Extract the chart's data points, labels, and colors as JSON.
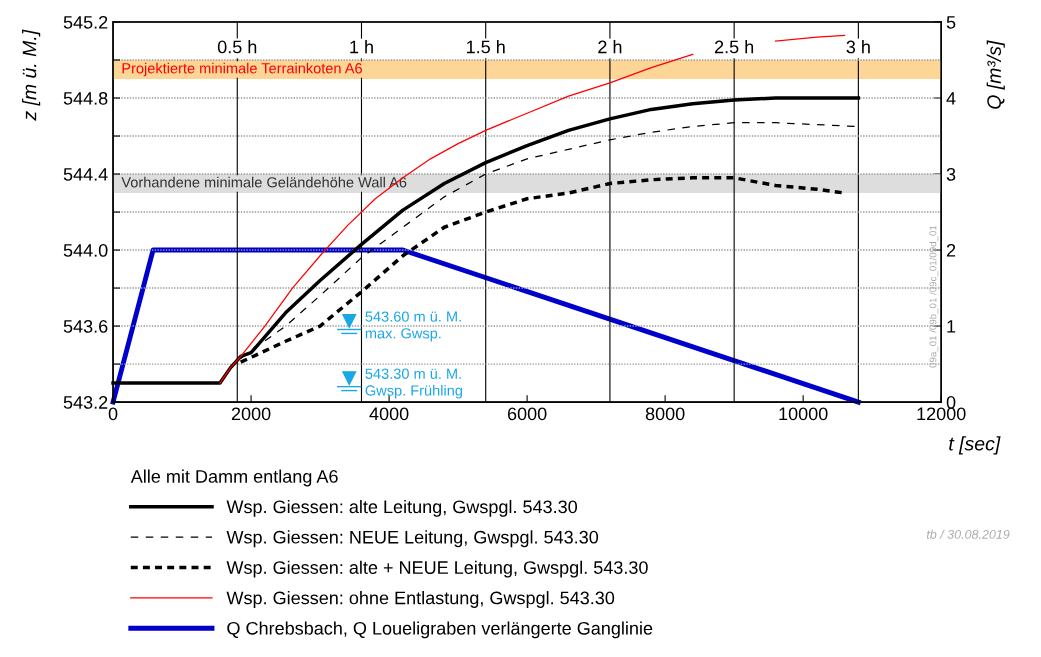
{
  "chart_data": {
    "type": "line",
    "xlabel": "t [sec]",
    "ylabel": "z [m ü. M.]",
    "y2label": "Q [m³/s]",
    "legend_title": "Alle mit Damm entlang A6",
    "xlim": [
      0,
      12000
    ],
    "xticks": [
      0,
      2000,
      4000,
      6000,
      8000,
      10000,
      12000
    ],
    "x2lim": [
      0,
      3.3333
    ],
    "x2ticks": [
      {
        "value": 0.5,
        "label": "0.5 h"
      },
      {
        "value": 1,
        "label": "1 h"
      },
      {
        "value": 1.5,
        "label": "1.5 h"
      },
      {
        "value": 2,
        "label": "2 h"
      },
      {
        "value": 2.5,
        "label": "2.5 h"
      },
      {
        "value": 3,
        "label": "3 h"
      }
    ],
    "ylim": [
      543.2,
      545.2
    ],
    "yticks": [
      {
        "value": 543.2,
        "label": "543.2"
      },
      {
        "value": 543.4,
        "label": null
      },
      {
        "value": 543.6,
        "label": "543.6"
      },
      {
        "value": 543.8,
        "label": null
      },
      {
        "value": 544.0,
        "label": "544.0"
      },
      {
        "value": 544.2,
        "label": null
      },
      {
        "value": 544.4,
        "label": "544.4"
      },
      {
        "value": 544.6,
        "label": null
      },
      {
        "value": 544.8,
        "label": "544.8"
      },
      {
        "value": 545.0,
        "label": null
      },
      {
        "value": 545.2,
        "label": "545.2"
      }
    ],
    "y2lim": [
      0,
      5
    ],
    "y2ticks": [
      0,
      1,
      2,
      3,
      4,
      5
    ],
    "grid": true,
    "legend": "bottom",
    "bands": [
      {
        "axis": "y",
        "from": 544.9,
        "to": 545.0,
        "label": "Projektierte minimale Terrainkoten A6",
        "color": "#fdd597"
      },
      {
        "axis": "y",
        "from": 544.3,
        "to": 544.4,
        "label": "Vorhandene minimale Geländehöhe Wall A6",
        "color": "#dcdddc"
      }
    ],
    "series": [
      {
        "name": "Wsp. Giessen: alte Leitung, Gwspgl. 543.30",
        "color": "#000000",
        "line_style": "solid",
        "x": [
          0,
          1550,
          1700,
          1850,
          2000,
          2500,
          3000,
          3600,
          4200,
          4800,
          5400,
          6000,
          6600,
          7200,
          7800,
          8400,
          9000,
          9600,
          10200,
          10800
        ],
        "values": [
          543.3,
          543.3,
          543.38,
          543.44,
          543.46,
          543.67,
          543.84,
          544.03,
          544.21,
          544.35,
          544.46,
          544.55,
          544.63,
          544.69,
          544.74,
          544.77,
          544.79,
          544.8,
          544.8,
          544.8
        ]
      },
      {
        "name": "Wsp. Giessen: NEUE Leitung, Gwspgl. 543.30",
        "color": "#000000",
        "line_style": "dashed",
        "x": [
          1850,
          2500,
          3000,
          3600,
          4200,
          4800,
          5400,
          6000,
          6600,
          7200,
          7800,
          8400,
          9000,
          9600,
          10200,
          10800
        ],
        "values": [
          543.43,
          543.6,
          543.76,
          543.96,
          544.12,
          544.28,
          544.4,
          544.48,
          544.53,
          544.58,
          544.62,
          544.65,
          544.67,
          544.67,
          544.66,
          544.65
        ]
      },
      {
        "name": "Wsp. Giessen: alte + NEUE Leitung, Gwspgl. 543.30",
        "color": "#000000",
        "line_style": "dotted",
        "x": [
          1850,
          2500,
          3000,
          3600,
          4200,
          4800,
          5400,
          6000,
          6600,
          7200,
          7800,
          8400,
          9000,
          9600,
          10200,
          10600
        ],
        "values": [
          543.41,
          543.52,
          543.6,
          543.78,
          543.97,
          544.12,
          544.2,
          544.27,
          544.3,
          544.35,
          544.37,
          544.38,
          544.38,
          544.34,
          544.32,
          544.3
        ]
      },
      {
        "name": "Wsp. Giessen: ohne Entlastung, Gwspgl. 543.30",
        "color": "#ff0000",
        "line_style": "solid",
        "x": [
          1550,
          1700,
          1850,
          2200,
          2600,
          3000,
          3400,
          3800,
          4200,
          4600,
          5000,
          5400,
          6000,
          6600,
          7200,
          7800,
          8400,
          9000,
          9600,
          10200,
          10600
        ],
        "values": [
          543.3,
          543.38,
          543.44,
          543.6,
          543.8,
          543.97,
          544.13,
          544.27,
          544.38,
          544.48,
          544.56,
          544.63,
          544.72,
          544.81,
          544.88,
          544.96,
          545.03,
          null,
          545.1,
          545.12,
          545.13
        ]
      },
      {
        "name": "Q Chrebsbach, Q Loueligraben verlängerte Ganglinie",
        "color": "#0000cc",
        "line_style": "solid",
        "axis": "y2",
        "x": [
          0,
          580,
          4200,
          10800
        ],
        "values": [
          0,
          2,
          2,
          0
        ]
      }
    ],
    "annotations": [
      "543.60 m ü. M.\nmax. Gwsp.",
      "543.30 m ü. M.\nGwsp. Frühling",
      "tb / 30.08.2019",
      "09a_01 /09b_01 /09c_01/09d_01"
    ]
  }
}
